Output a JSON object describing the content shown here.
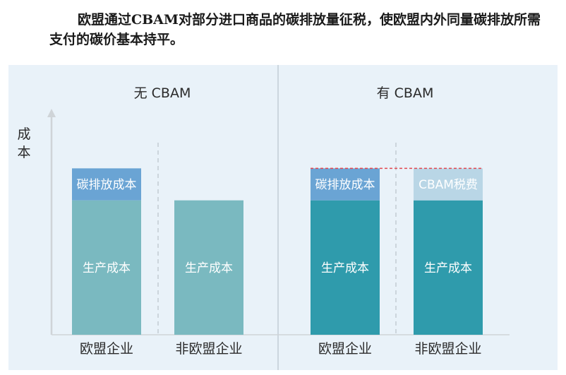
{
  "caption": "欧盟通过CBAM对部分进口商品的碳排放量征税，使欧盟内外同量碳排放所需支付的碳价基本持平。",
  "chart_data": {
    "type": "bar",
    "stacked": true,
    "ylabel": "成本",
    "panels": [
      {
        "title": "无 CBAM",
        "categories": [
          "欧盟企业",
          "非欧盟企业"
        ],
        "bars": [
          {
            "category": "欧盟企业",
            "segments": [
              {
                "label": "生产成本",
                "value": 2.1,
                "color": "#7ab9c0"
              },
              {
                "label": "碳排放成本",
                "value": 0.5,
                "color": "#6aa4d4"
              }
            ]
          },
          {
            "category": "非欧盟企业",
            "segments": [
              {
                "label": "生产成本",
                "value": 2.1,
                "color": "#7ab9c0"
              }
            ]
          }
        ]
      },
      {
        "title": "有 CBAM",
        "categories": [
          "欧盟企业",
          "非欧盟企业"
        ],
        "bars": [
          {
            "category": "欧盟企业",
            "segments": [
              {
                "label": "生产成本",
                "value": 2.1,
                "color": "#2f9bac"
              },
              {
                "label": "碳排放成本",
                "value": 0.5,
                "color": "#6aa4d4"
              }
            ]
          },
          {
            "category": "非欧盟企业",
            "segments": [
              {
                "label": "生产成本",
                "value": 2.1,
                "color": "#2f9bac"
              },
              {
                "label": "CBAM税费",
                "value": 0.5,
                "color": "#b9d6e6"
              }
            ]
          }
        ]
      }
    ],
    "reference_line": {
      "value": 2.6,
      "style": "dashed",
      "color": "#e3474f"
    },
    "ylim": [
      0,
      3.2
    ],
    "grid": false,
    "legend": "none"
  }
}
